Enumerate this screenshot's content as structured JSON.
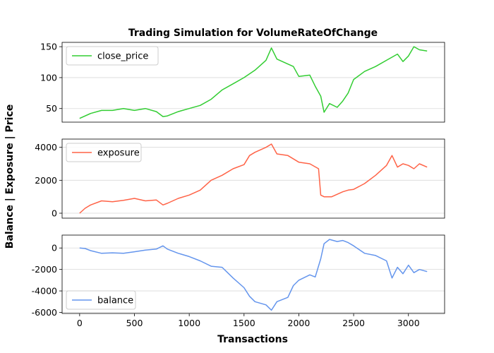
{
  "chart_data": {
    "type": "line",
    "title": "Trading Simulation for VolumeRateOfChange",
    "xlabel": "Transactions",
    "ylabel": "Balance | Exposure | Price",
    "xlim": [
      -160,
      3330
    ],
    "x_ticks": [
      0,
      500,
      1000,
      1500,
      2000,
      2500,
      3000
    ],
    "grid": "horizontal",
    "panels": [
      {
        "name": "price",
        "series": [
          {
            "name": "close_price",
            "color": "#32cd32",
            "x": [
              0,
              100,
              200,
              300,
              400,
              500,
              600,
              700,
              760,
              800,
              900,
              1000,
              1100,
              1200,
              1300,
              1400,
              1500,
              1600,
              1700,
              1750,
              1800,
              1900,
              1950,
              2000,
              2100,
              2150,
              2200,
              2230,
              2280,
              2350,
              2400,
              2450,
              2500,
              2600,
              2700,
              2800,
              2900,
              2950,
              3000,
              3050,
              3100,
              3170
            ],
            "y": [
              34,
              42,
              47,
              47,
              50,
              47,
              50,
              45,
              37,
              38,
              45,
              50,
              55,
              65,
              80,
              90,
              100,
              112,
              128,
              148,
              130,
              122,
              118,
              102,
              104,
              86,
              70,
              44,
              58,
              52,
              62,
              75,
              97,
              110,
              118,
              128,
              138,
              126,
              135,
              150,
              145,
              143
            ]
          }
        ],
        "ylim": [
          28,
          157
        ],
        "y_ticks": [
          50,
          100,
          150
        ],
        "legend": "top-left"
      },
      {
        "name": "exposure",
        "series": [
          {
            "name": "exposure",
            "color": "#ff6347",
            "x": [
              0,
              50,
              100,
              200,
              300,
              400,
              500,
              600,
              700,
              760,
              800,
              900,
              1000,
              1100,
              1200,
              1300,
              1400,
              1500,
              1550,
              1600,
              1700,
              1750,
              1800,
              1900,
              2000,
              2100,
              2180,
              2200,
              2230,
              2300,
              2400,
              2450,
              2500,
              2600,
              2700,
              2800,
              2850,
              2900,
              2950,
              3000,
              3050,
              3100,
              3170
            ],
            "y": [
              0,
              300,
              500,
              750,
              700,
              780,
              900,
              750,
              800,
              500,
              600,
              900,
              1100,
              1400,
              2000,
              2300,
              2700,
              2950,
              3500,
              3700,
              4000,
              4200,
              3600,
              3500,
              3100,
              3000,
              2700,
              1100,
              1000,
              1000,
              1300,
              1400,
              1450,
              1800,
              2300,
              2900,
              3500,
              2800,
              3000,
              2900,
              2700,
              3000,
              2800
            ]
          }
        ],
        "ylim": [
          -300,
          4500
        ],
        "y_ticks": [
          0,
          2000,
          4000
        ],
        "legend": "top-left"
      },
      {
        "name": "balance",
        "series": [
          {
            "name": "balance",
            "color": "#6495ed",
            "x": [
              0,
              50,
              100,
              200,
              300,
              400,
              500,
              600,
              700,
              760,
              800,
              900,
              1000,
              1100,
              1200,
              1300,
              1400,
              1500,
              1550,
              1600,
              1700,
              1750,
              1800,
              1900,
              1950,
              2000,
              2100,
              2150,
              2200,
              2230,
              2280,
              2350,
              2400,
              2450,
              2500,
              2600,
              2700,
              2800,
              2850,
              2900,
              2950,
              3000,
              3050,
              3100,
              3170
            ],
            "y": [
              0,
              -50,
              -250,
              -500,
              -450,
              -500,
              -350,
              -200,
              -100,
              200,
              -100,
              -500,
              -800,
              -1200,
              -1700,
              -1800,
              -2800,
              -3700,
              -4500,
              -5000,
              -5300,
              -5800,
              -5000,
              -4600,
              -3500,
              -3000,
              -2500,
              -2700,
              -1000,
              400,
              800,
              600,
              700,
              500,
              200,
              -500,
              -700,
              -1200,
              -2800,
              -1800,
              -2400,
              -1600,
              -2300,
              -2000,
              -2200
            ]
          }
        ],
        "ylim": [
          -6100,
          1200
        ],
        "y_ticks": [
          -6000,
          -4000,
          -2000,
          0
        ],
        "legend": "bottom-left"
      }
    ]
  }
}
